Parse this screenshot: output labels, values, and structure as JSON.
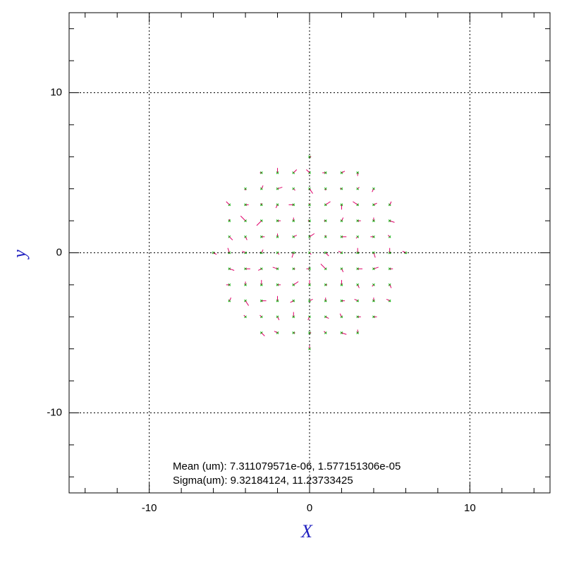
{
  "chart_data": {
    "type": "vector",
    "xlabel": "X",
    "ylabel": "y",
    "annotations": [
      "Mean (um): 7.311079571e-06, 1.577151306e-05",
      "Sigma(um): 9.32184124, 11.23733425"
    ],
    "xlim": [
      -15,
      15
    ],
    "ylim": [
      -15,
      15
    ],
    "xticks": [
      -10,
      0,
      10
    ],
    "yticks": [
      -10,
      0,
      10
    ],
    "xminorticks": [
      -14,
      -12,
      -8,
      -6,
      -4,
      -2,
      2,
      4,
      6,
      8,
      12,
      14
    ],
    "yminorticks": [
      -14,
      -12,
      -8,
      -6,
      -4,
      -2,
      2,
      4,
      6,
      8,
      12,
      14
    ],
    "grid": true,
    "marker_color": "#00b000",
    "vector_color": "#e0006a",
    "x": [
      -6,
      -5,
      -5,
      -5,
      -5,
      -5,
      -5,
      -5,
      -4,
      -4,
      -4,
      -4,
      -4,
      -4,
      -4,
      -4,
      -4,
      -3,
      -3,
      -3,
      -3,
      -3,
      -3,
      -3,
      -3,
      -3,
      -3,
      -3,
      -2,
      -2,
      -2,
      -2,
      -2,
      -2,
      -2,
      -2,
      -2,
      -2,
      -2,
      -1,
      -1,
      -1,
      -1,
      -1,
      -1,
      -1,
      -1,
      -1,
      -1,
      -1,
      0,
      0,
      0,
      0,
      0,
      0,
      0,
      0,
      0,
      0,
      0,
      0,
      0,
      1,
      1,
      1,
      1,
      1,
      1,
      1,
      1,
      1,
      1,
      1,
      2,
      2,
      2,
      2,
      2,
      2,
      2,
      2,
      2,
      2,
      2,
      3,
      3,
      3,
      3,
      3,
      3,
      3,
      3,
      3,
      3,
      3,
      4,
      4,
      4,
      4,
      4,
      4,
      4,
      4,
      4,
      5,
      5,
      5,
      5,
      5,
      5,
      5,
      6
    ],
    "y": [
      0,
      -3,
      -2,
      -1,
      0,
      1,
      2,
      3,
      -4,
      -3,
      -2,
      -1,
      0,
      1,
      2,
      3,
      4,
      -5,
      -4,
      -3,
      -2,
      -1,
      0,
      1,
      2,
      3,
      4,
      5,
      -5,
      -4,
      -3,
      -2,
      -1,
      0,
      1,
      2,
      3,
      4,
      5,
      -5,
      -4,
      -3,
      -2,
      -1,
      0,
      1,
      2,
      3,
      4,
      5,
      -6,
      -5,
      -4,
      -3,
      -2,
      -1,
      0,
      1,
      2,
      3,
      4,
      5,
      6,
      -5,
      -4,
      -3,
      -2,
      -1,
      0,
      1,
      2,
      3,
      4,
      5,
      -5,
      -4,
      -3,
      -2,
      -1,
      0,
      1,
      2,
      3,
      4,
      5,
      -5,
      -4,
      -3,
      -2,
      -1,
      0,
      1,
      2,
      3,
      4,
      5,
      -4,
      -3,
      -2,
      -1,
      0,
      1,
      2,
      3,
      4,
      -3,
      -2,
      -1,
      0,
      1,
      2,
      3,
      0
    ],
    "u": [
      0.2,
      0.1,
      -0.2,
      0.3,
      -0.1,
      0.2,
      0,
      -0.2,
      -0.1,
      0.2,
      0,
      0.3,
      -0.2,
      0.1,
      -0.3,
      0.2,
      0,
      0.2,
      -0.1,
      0.3,
      0,
      -0.2,
      0.1,
      0.2,
      -0.3,
      0,
      0.1,
      -0.1,
      -0.2,
      0.1,
      0,
      0.2,
      -0.3,
      0.1,
      0,
      0.2,
      -0.1,
      0.3,
      0,
      0.1,
      0,
      -0.2,
      0.3,
      0.1,
      -0.1,
      0.2,
      0,
      -0.3,
      0.1,
      0.2,
      0,
      0.1,
      -0.1,
      0.2,
      0,
      -0.2,
      0.1,
      0.3,
      -0.1,
      0,
      0.2,
      -0.2,
      0.1,
      -0.1,
      0.2,
      0,
      0.1,
      -0.3,
      0.2,
      0,
      -0.1,
      0.3,
      0,
      -0.2,
      0.3,
      -0.1,
      0.2,
      0,
      0.1,
      -0.2,
      0.3,
      0.1,
      0,
      -0.1,
      0.2,
      0,
      0.2,
      -0.2,
      0.1,
      0.3,
      0,
      -0.1,
      0.2,
      -0.3,
      0.1,
      0,
      0.2,
      0,
      -0.1,
      0.3,
      0.1,
      -0.2,
      0,
      0.2,
      -0.1,
      -0.2,
      0.1,
      0.2,
      0,
      -0.1,
      0.3,
      0.1,
      -0.2
    ],
    "v": [
      -0.1,
      0.2,
      0,
      -0.1,
      0.3,
      -0.2,
      0.1,
      0.2,
      0.1,
      -0.3,
      0.2,
      0,
      0.1,
      -0.2,
      0.3,
      0,
      -0.1,
      -0.2,
      0.1,
      0,
      0.3,
      -0.1,
      0.2,
      0,
      -0.3,
      0.1,
      0.2,
      0,
      0.1,
      -0.2,
      0.3,
      0,
      0.1,
      -0.1,
      0.2,
      0,
      -0.2,
      0.1,
      0.3,
      0,
      0.3,
      -0.1,
      0.2,
      0,
      -0.3,
      0.1,
      0.2,
      0,
      -0.1,
      0.2,
      0.2,
      0,
      -0.2,
      0.1,
      0.3,
      0,
      -0.1,
      0.2,
      0,
      0.1,
      -0.3,
      0.2,
      0,
      0.1,
      -0.1,
      0.2,
      0,
      0.3,
      -0.2,
      0.1,
      0,
      0.2,
      -0.1,
      0,
      -0.1,
      0.2,
      0,
      0.3,
      -0.2,
      0.1,
      0,
      0.2,
      -0.3,
      0,
      0.1,
      0.2,
      0,
      0.1,
      -0.2,
      0,
      0.3,
      -0.1,
      0,
      0.2,
      0.1,
      -0.2,
      0,
      0.2,
      -0.1,
      0.1,
      -0.3,
      0,
      0.2,
      0.1,
      -0.2,
      0.1,
      -0.2,
      0,
      0.3,
      0.1,
      -0.1,
      0.2,
      0.1
    ]
  }
}
